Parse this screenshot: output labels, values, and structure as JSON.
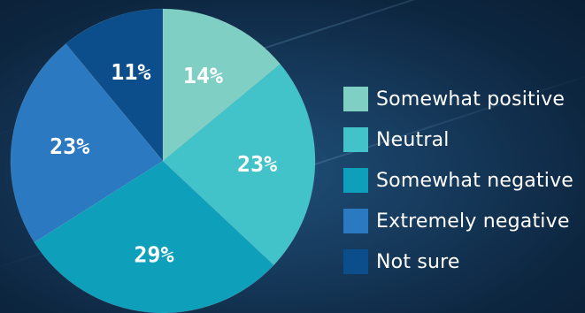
{
  "chart_data": {
    "type": "pie",
    "title": "",
    "start_angle_deg": 0,
    "direction": "clockwise",
    "slices": [
      {
        "label": "Somewhat positive",
        "value": 14,
        "value_label": "14%",
        "color": "#7fcfc4"
      },
      {
        "label": "Neutral",
        "value": 23,
        "value_label": "23%",
        "color": "#42c2c9"
      },
      {
        "label": "Somewhat negative",
        "value": 29,
        "value_label": "29%",
        "color": "#0ea0bb"
      },
      {
        "label": "Extremely negative",
        "value": 23,
        "value_label": "23%",
        "color": "#2a79c1"
      },
      {
        "label": "Not sure",
        "value": 11,
        "value_label": "11%",
        "color": "#0c4e8b"
      }
    ],
    "legend_position": "right"
  }
}
